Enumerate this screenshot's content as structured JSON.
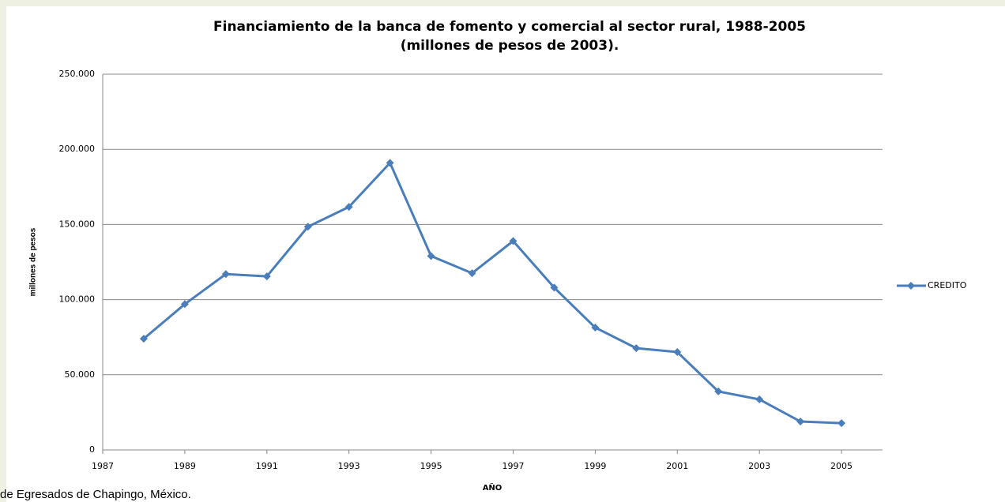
{
  "chart_data": {
    "type": "line",
    "title": [
      "Financiamiento de la banca de fomento y comercial al sector rural, 1988-2005",
      "(millones de pesos de 2003)."
    ],
    "x_label": "AÑO",
    "y_label": "millones de pesos",
    "x": [
      1988,
      1989,
      1990,
      1991,
      1992,
      1993,
      1994,
      1995,
      1996,
      1997,
      1998,
      1999,
      2000,
      2001,
      2002,
      2003,
      2004,
      2005
    ],
    "series": [
      {
        "name": "CREDITO",
        "color": "#4a7ebb",
        "values": [
          74000,
          97000,
          117000,
          115500,
          148500,
          161700,
          191000,
          129000,
          117600,
          139000,
          108000,
          81400,
          67700,
          65100,
          38900,
          33600,
          18900,
          17800
        ]
      }
    ],
    "xlim": [
      1987,
      2006
    ],
    "xticks": [
      1987,
      1989,
      1991,
      1993,
      1995,
      1997,
      1999,
      2001,
      2003,
      2005
    ],
    "ylim": [
      0,
      250000
    ],
    "yticks": [
      0,
      {
        "value": 50000,
        "label": "50.000"
      },
      {
        "value": 100000,
        "label": "100.000"
      },
      {
        "value": 150000,
        "label": "150.000"
      },
      {
        "value": 200000,
        "label": "200.000"
      },
      {
        "value": 250000,
        "label": "250.000"
      }
    ],
    "grid": true,
    "legend": "right"
  },
  "footer": "de Egresados de Chapingo, México."
}
